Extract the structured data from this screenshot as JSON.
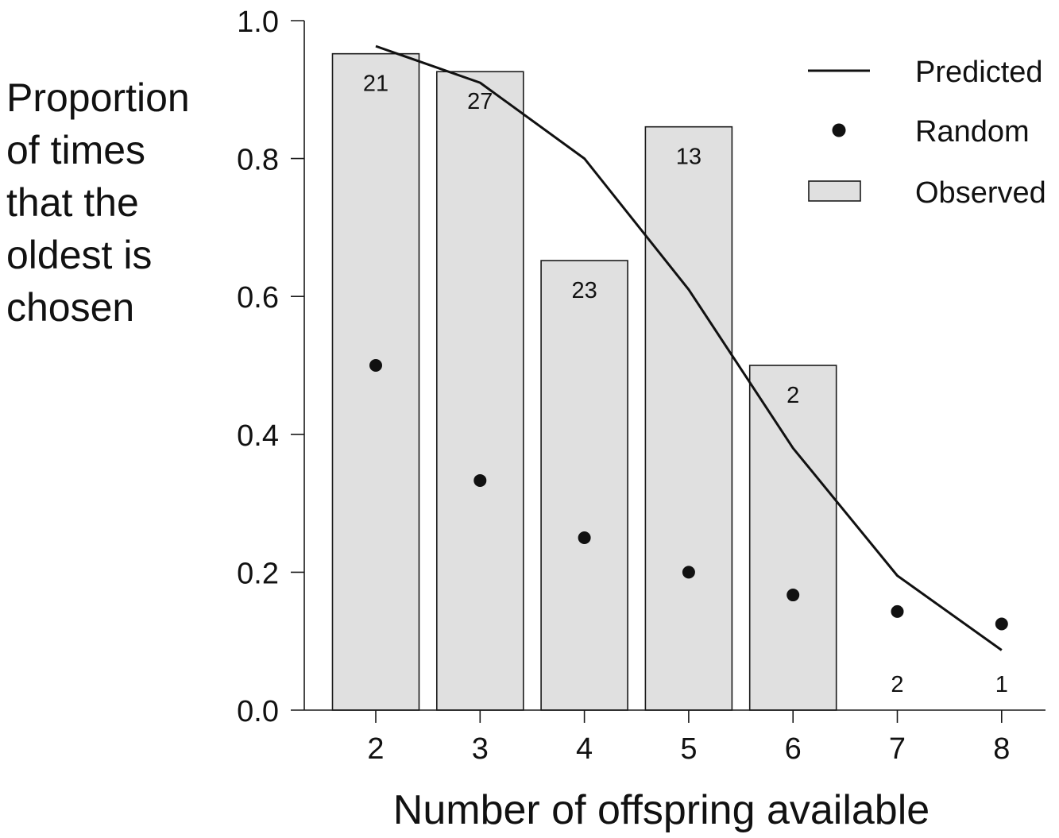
{
  "chart_data": {
    "type": "bar",
    "title": "",
    "xlabel": "Number of offspring available",
    "ylabel_lines": [
      "Proportion",
      "of times",
      "that the",
      "oldest is",
      "chosen"
    ],
    "x": [
      2,
      3,
      4,
      5,
      6,
      7,
      8
    ],
    "x_tick_labels": [
      "2",
      "3",
      "4",
      "5",
      "6",
      "7",
      "8"
    ],
    "ylim": [
      0,
      1
    ],
    "y_ticks": [
      0,
      0.2,
      0.4,
      0.6,
      0.8,
      1
    ],
    "y_tick_labels": [
      "0.0",
      "0.2",
      "0.4",
      "0.6",
      "0.8",
      "1.0"
    ],
    "grid": false,
    "legend_position": "top-right",
    "series": [
      {
        "name": "Observed",
        "type": "bar",
        "color": "#e0e0e0",
        "values": [
          0.952,
          0.926,
          0.652,
          0.846,
          0.5,
          0,
          0
        ],
        "bar_labels": [
          "21",
          "27",
          "23",
          "13",
          "2",
          "2",
          "1"
        ]
      },
      {
        "name": "Predicted",
        "type": "line",
        "color": "#111111",
        "values": [
          0.963,
          0.91,
          0.8,
          0.61,
          0.38,
          0.195,
          0.087
        ]
      },
      {
        "name": "Random",
        "type": "scatter",
        "color": "#111111",
        "values": [
          0.5,
          0.333,
          0.25,
          0.2,
          0.167,
          0.143,
          0.125
        ]
      }
    ]
  }
}
